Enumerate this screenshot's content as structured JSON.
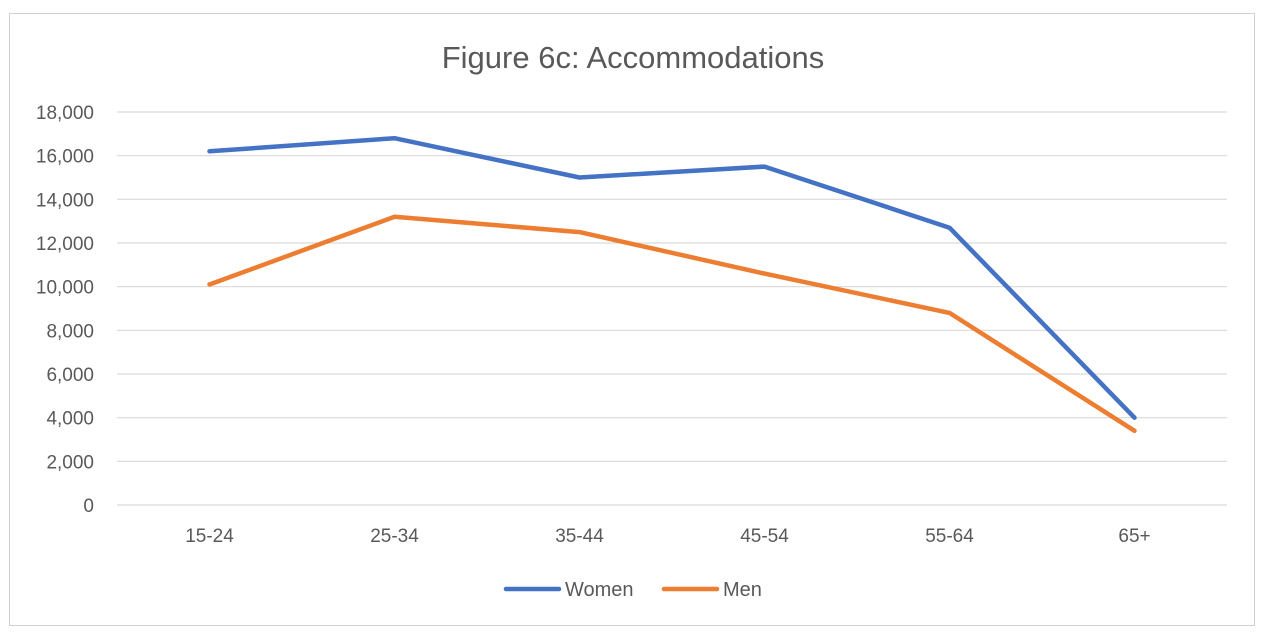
{
  "chart_data": {
    "type": "line",
    "title": "Figure 6c: Accommodations",
    "xlabel": "",
    "ylabel": "",
    "categories": [
      "15-24",
      "25-34",
      "35-44",
      "45-54",
      "55-64",
      "65+"
    ],
    "ylim": [
      0,
      18000
    ],
    "y_ticks": [
      "0",
      "2,000",
      "4,000",
      "6,000",
      "8,000",
      "10,000",
      "12,000",
      "14,000",
      "16,000",
      "18,000"
    ],
    "y_tick_values": [
      0,
      2000,
      4000,
      6000,
      8000,
      10000,
      12000,
      14000,
      16000,
      18000
    ],
    "grid": true,
    "legend_position": "bottom",
    "series": [
      {
        "name": "Women",
        "color": "#4472C4",
        "values": [
          16200,
          16800,
          15000,
          15500,
          12700,
          4000
        ]
      },
      {
        "name": "Men",
        "color": "#ED7D31",
        "values": [
          10100,
          13200,
          12500,
          10600,
          8800,
          3400
        ]
      }
    ]
  }
}
